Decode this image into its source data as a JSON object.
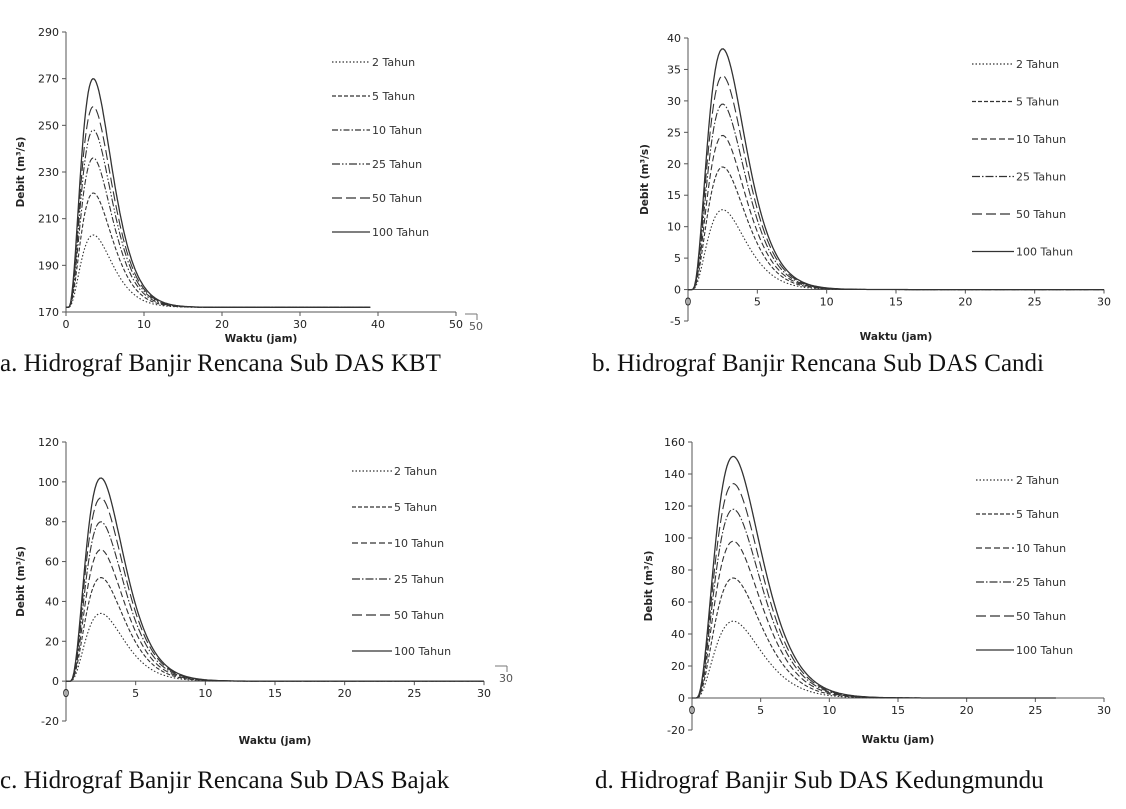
{
  "chart_data": [
    {
      "type": "line",
      "xlabel": "Waktu (jam)",
      "ylabel": "Debit (m³/s)",
      "xlim": [
        0,
        50
      ],
      "ylim": [
        170,
        290
      ],
      "xticks": [
        "0",
        "10",
        "20",
        "30",
        "40",
        "50"
      ],
      "yticks": [
        "170",
        "190",
        "210",
        "230",
        "250",
        "270",
        "290"
      ],
      "stray_label": "50",
      "peak_time": 3.5,
      "base": 172,
      "x_end": 39,
      "legend_position": "right",
      "series": [
        {
          "name": "2 Tahun",
          "peak": 203,
          "dash": "1.5 2"
        },
        {
          "name": "5 Tahun",
          "peak": 221,
          "dash": "4 2"
        },
        {
          "name": "10 Tahun",
          "peak": 236,
          "dash": "6 2 1.5 2"
        },
        {
          "name": "25 Tahun",
          "peak": 248,
          "dash": "8 2 1.5 2 1.5 2"
        },
        {
          "name": "50 Tahun",
          "peak": 258,
          "dash": "10 4"
        },
        {
          "name": "100 Tahun",
          "peak": 270,
          "dash": ""
        }
      ]
    },
    {
      "type": "line",
      "xlabel": "Waktu (jam)",
      "ylabel": "Debit (m³/s)",
      "xlim": [
        0,
        30
      ],
      "ylim": [
        -5,
        40
      ],
      "xticks": [
        "0",
        "5",
        "10",
        "15",
        "20",
        "25",
        "30"
      ],
      "yticks": [
        "-5",
        "0",
        "5",
        "10",
        "15",
        "20",
        "25",
        "30",
        "35",
        "40"
      ],
      "peak_time": 2.5,
      "base": 0,
      "x_end": 30,
      "legend_position": "right",
      "series": [
        {
          "name": "2 Tahun",
          "peak": 12.7,
          "dash": "1.5 2"
        },
        {
          "name": "5 Tahun",
          "peak": 19.5,
          "dash": "4 2"
        },
        {
          "name": "10 Tahun",
          "peak": 24.5,
          "dash": "6 3"
        },
        {
          "name": "25 Tahun",
          "peak": 29.5,
          "dash": "8 2 1.5 2"
        },
        {
          "name": "50 Tahun",
          "peak": 34,
          "dash": "10 4"
        },
        {
          "name": "100 Tahun",
          "peak": 38.3,
          "dash": ""
        }
      ]
    },
    {
      "type": "line",
      "xlabel": "Waktu (jam)",
      "ylabel": "Debit (m³/s)",
      "xlim": [
        0,
        30
      ],
      "ylim": [
        -20,
        120
      ],
      "xticks": [
        "0",
        "5",
        "10",
        "15",
        "20",
        "25",
        "30"
      ],
      "yticks": [
        "-20",
        "0",
        "20",
        "40",
        "60",
        "80",
        "100",
        "120"
      ],
      "stray_label": "30",
      "peak_time": 2.5,
      "base": 0,
      "x_end": 30,
      "legend_position": "right",
      "series": [
        {
          "name": "2 Tahun",
          "peak": 34,
          "dash": "1.5 2"
        },
        {
          "name": "5 Tahun",
          "peak": 52,
          "dash": "4 2"
        },
        {
          "name": "10 Tahun",
          "peak": 66,
          "dash": "6 3"
        },
        {
          "name": "25 Tahun",
          "peak": 80,
          "dash": "8 2 1.5 2"
        },
        {
          "name": "50 Tahun",
          "peak": 92,
          "dash": "10 4"
        },
        {
          "name": "100 Tahun",
          "peak": 102,
          "dash": ""
        }
      ]
    },
    {
      "type": "line",
      "xlabel": "Waktu (jam)",
      "ylabel": "Debit (m³/s)",
      "xlim": [
        0,
        30
      ],
      "ylim": [
        -20,
        160
      ],
      "xticks": [
        "0",
        "5",
        "10",
        "15",
        "20",
        "25",
        "30"
      ],
      "yticks": [
        "-20",
        "0",
        "20",
        "40",
        "60",
        "80",
        "100",
        "120",
        "140",
        "160"
      ],
      "peak_time": 3,
      "base": 0,
      "x_end": 26.5,
      "legend_position": "right",
      "series": [
        {
          "name": "2 Tahun",
          "peak": 48,
          "dash": "1.5 2"
        },
        {
          "name": "5 Tahun",
          "peak": 75,
          "dash": "4 2"
        },
        {
          "name": "10 Tahun",
          "peak": 98,
          "dash": "6 3"
        },
        {
          "name": "25 Tahun",
          "peak": 118,
          "dash": "8 2 1.5 2"
        },
        {
          "name": "50 Tahun",
          "peak": 134,
          "dash": "10 4"
        },
        {
          "name": "100 Tahun",
          "peak": 151,
          "dash": ""
        }
      ]
    }
  ],
  "captions": [
    "a. Hidrograf Banjir Rencana Sub DAS KBT",
    "b. Hidrograf Banjir Rencana Sub DAS Candi",
    "c. Hidrograf Banjir Rencana Sub DAS Bajak",
    "d. Hidrograf Banjir Sub DAS Kedungmundu"
  ]
}
